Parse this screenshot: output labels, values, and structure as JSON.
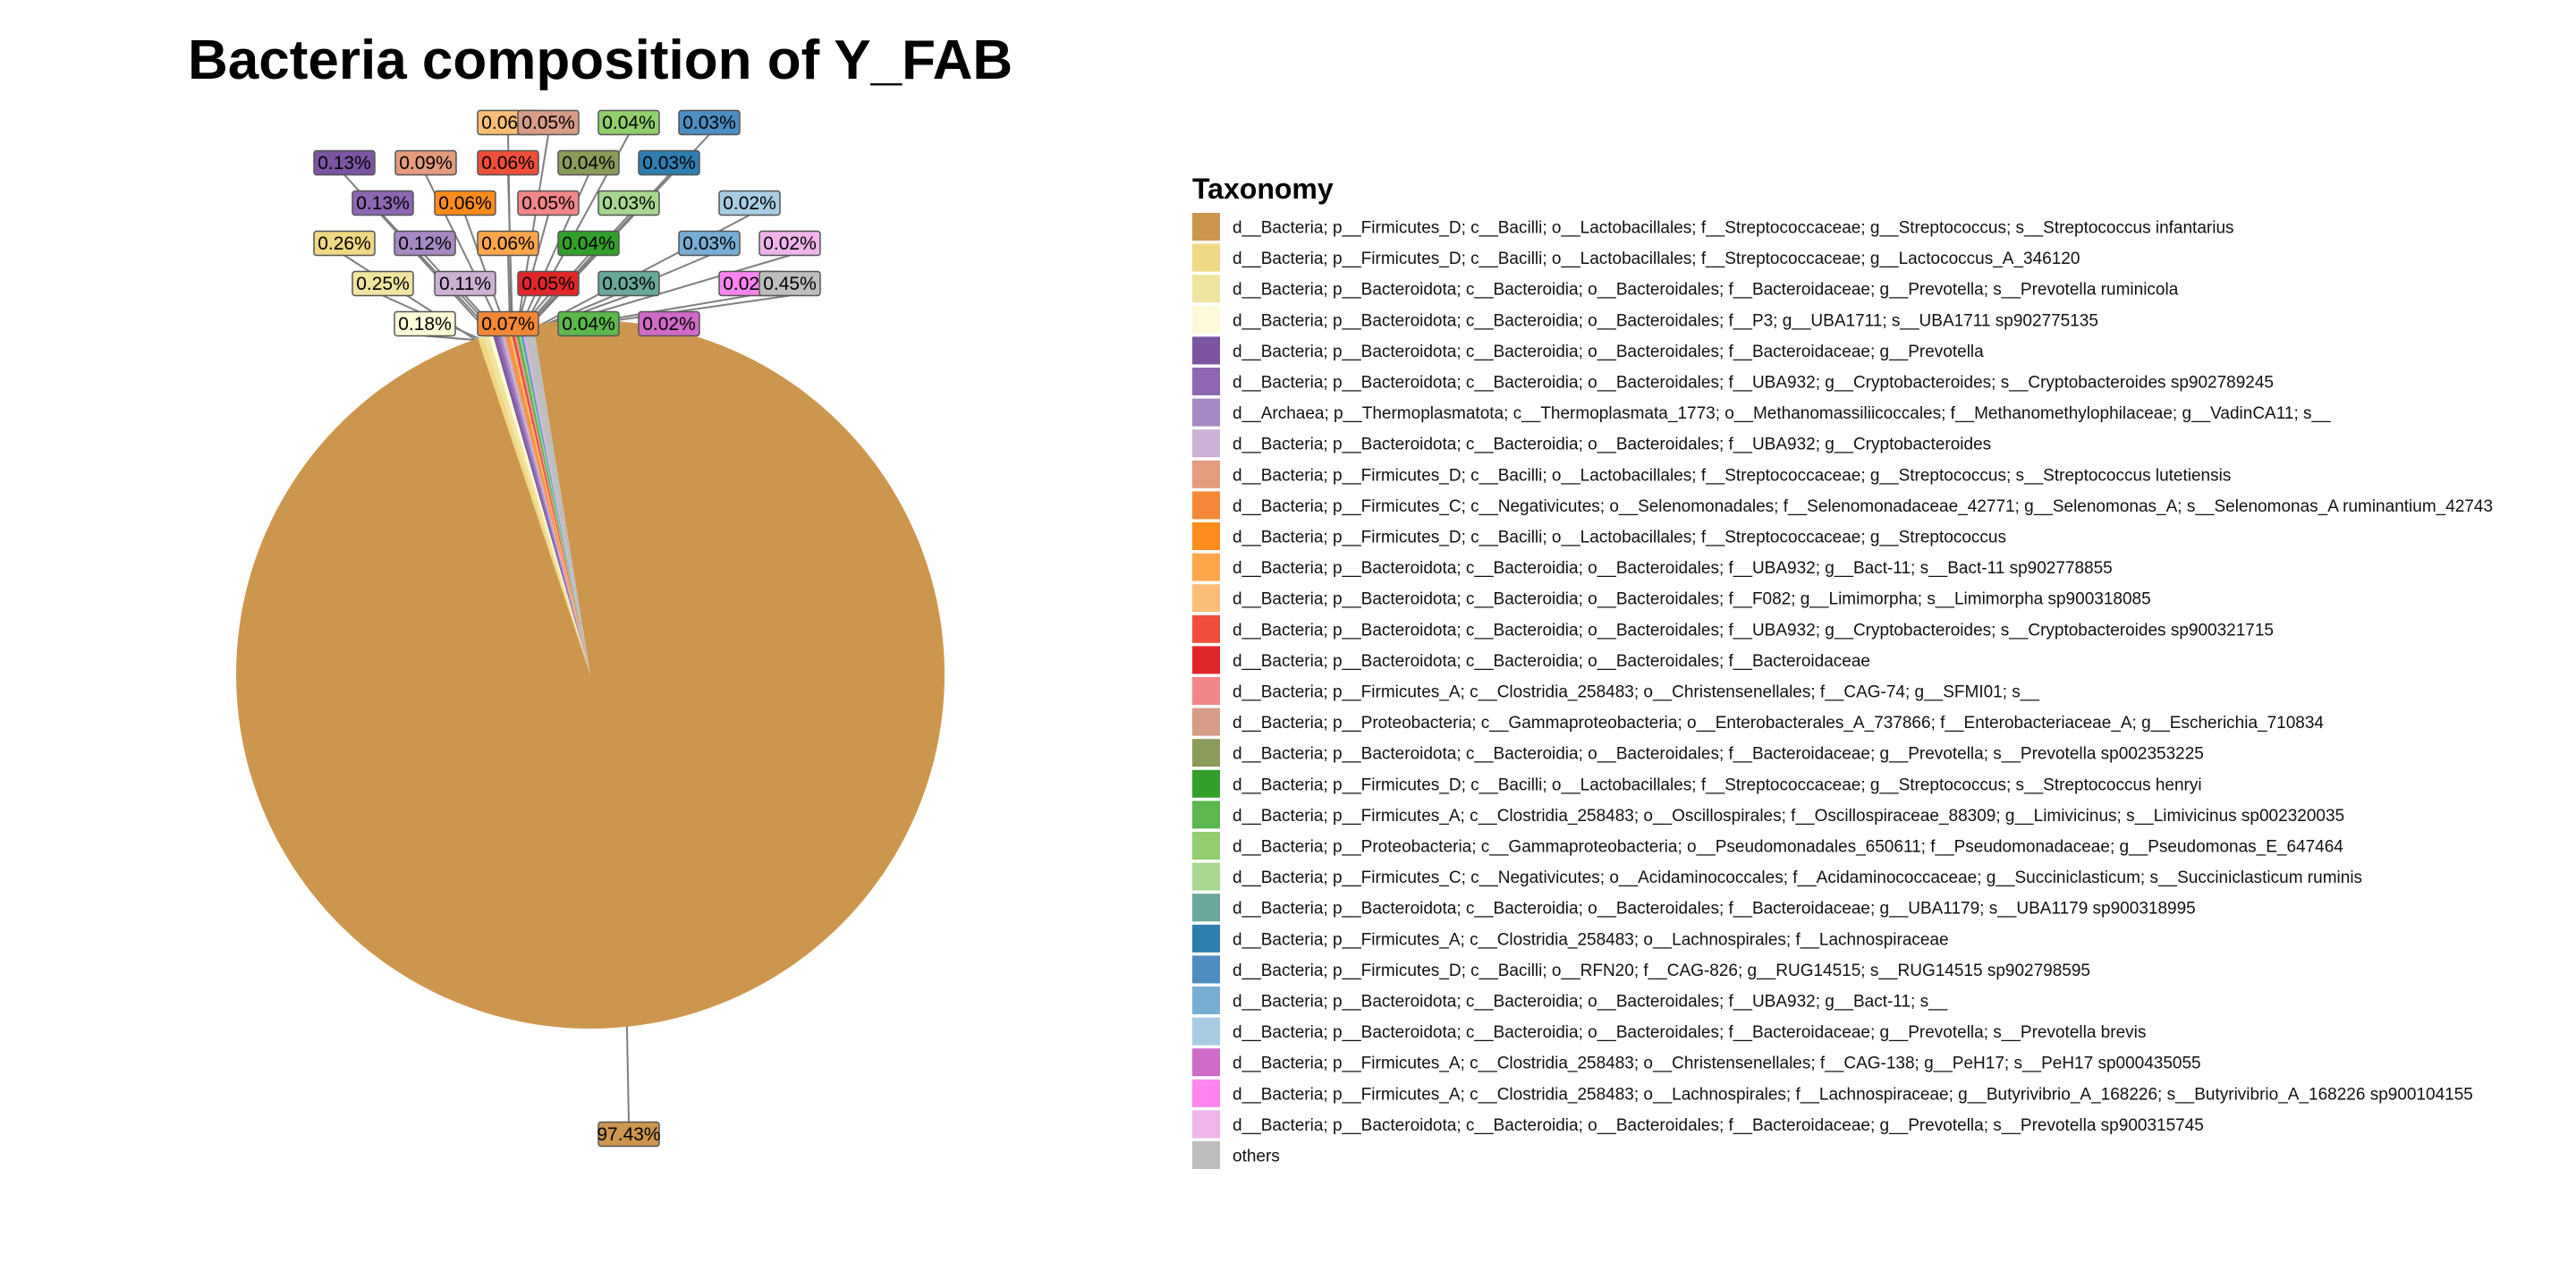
{
  "chart_data": {
    "type": "pie",
    "title": "Bacteria composition of Y_FAB",
    "legend_title": "Taxonomy",
    "legend_position": "right",
    "slices": [
      {
        "name": "d__Bacteria; p__Firmicutes_D; c__Bacilli; o__Lactobacillales; f__Streptococcaceae; g__Streptococcus; s__Streptococcus infantarius",
        "value": 97.43,
        "label": "97.43%",
        "color": "#CD964F"
      },
      {
        "name": "d__Bacteria; p__Firmicutes_D; c__Bacilli; o__Lactobacillales; f__Streptococcaceae; g__Lactococcus_A_346120",
        "value": 0.26,
        "label": "0.26%",
        "color": "#F0D884"
      },
      {
        "name": "d__Bacteria; p__Bacteroidota; c__Bacteroidia; o__Bacteroidales; f__Bacteroidaceae; g__Prevotella; s__Prevotella ruminicola",
        "value": 0.25,
        "label": "0.25%",
        "color": "#EFE5A1"
      },
      {
        "name": "d__Bacteria; p__Bacteroidota; c__Bacteroidia; o__Bacteroidales; f__P3; g__UBA1711; s__UBA1711 sp902775135",
        "value": 0.18,
        "label": "0.18%",
        "color": "#FEFCD8"
      },
      {
        "name": "d__Bacteria; p__Bacteroidota; c__Bacteroidia; o__Bacteroidales; f__Bacteroidaceae; g__Prevotella",
        "value": 0.13,
        "label": "0.13%",
        "color": "#7B55A1"
      },
      {
        "name": "d__Bacteria; p__Bacteroidota; c__Bacteroidia; o__Bacteroidales; f__UBA932; g__Cryptobacteroides; s__Cryptobacteroides sp902789245",
        "value": 0.13,
        "label": "0.13%",
        "color": "#8D67B1"
      },
      {
        "name": "d__Archaea; p__Thermoplasmatota; c__Thermoplasmata_1773; o__Methanomassiliicoccales; f__Methanomethylophilaceae; g__VadinCA11; s__",
        "value": 0.12,
        "label": "0.12%",
        "color": "#A689C3"
      },
      {
        "name": "d__Bacteria; p__Bacteroidota; c__Bacteroidia; o__Bacteroidales; f__UBA932; g__Cryptobacteroides",
        "value": 0.11,
        "label": "0.11%",
        "color": "#CDB1D5"
      },
      {
        "name": "d__Bacteria; p__Firmicutes_D; c__Bacilli; o__Lactobacillales; f__Streptococcaceae; g__Streptococcus; s__Streptococcus lutetiensis",
        "value": 0.09,
        "label": "0.09%",
        "color": "#E49B7E"
      },
      {
        "name": "d__Bacteria; p__Firmicutes_C; c__Negativicutes; o__Selenomonadales; f__Selenomonadaceae_42771; g__Selenomonas_A; s__Selenomonas_A ruminantium_42743",
        "value": 0.07,
        "label": "0.07%",
        "color": "#F48836"
      },
      {
        "name": "d__Bacteria; p__Firmicutes_D; c__Bacilli; o__Lactobacillales; f__Streptococcaceae; g__Streptococcus",
        "value": 0.06,
        "label": "0.06%",
        "color": "#FE8C1C"
      },
      {
        "name": "d__Bacteria; p__Bacteroidota; c__Bacteroidia; o__Bacteroidales; f__UBA932; g__Bact-11; s__Bact-11 sp902778855",
        "value": 0.06,
        "label": "0.06%",
        "color": "#FCA64C"
      },
      {
        "name": "d__Bacteria; p__Bacteroidota; c__Bacteroidia; o__Bacteroidales; f__F082; g__Limimorpha; s__Limimorpha sp900318085",
        "value": 0.06,
        "label": "0.06%",
        "color": "#FCBE77"
      },
      {
        "name": "d__Bacteria; p__Bacteroidota; c__Bacteroidia; o__Bacteroidales; f__UBA932; g__Cryptobacteroides; s__Cryptobacteroides sp900321715",
        "value": 0.06,
        "label": "0.06%",
        "color": "#EF4F3A"
      },
      {
        "name": "d__Bacteria; p__Bacteroidota; c__Bacteroidia; o__Bacteroidales; f__Bacteroidaceae",
        "value": 0.05,
        "label": "0.05%",
        "color": "#E1262A"
      },
      {
        "name": "d__Bacteria; p__Firmicutes_A; c__Clostridia_258483; o__Christensenellales; f__CAG-74; g__SFMI01; s__",
        "value": 0.05,
        "label": "0.05%",
        "color": "#F38688"
      },
      {
        "name": "d__Bacteria; p__Proteobacteria; c__Gammaproteobacteria; o__Enterobacterales_A_737866; f__Enterobacteriaceae_A; g__Escherichia_710834",
        "value": 0.05,
        "label": "0.05%",
        "color": "#D69C86"
      },
      {
        "name": "d__Bacteria; p__Bacteroidota; c__Bacteroidia; o__Bacteroidales; f__Bacteroidaceae; g__Prevotella; s__Prevotella sp002353225",
        "value": 0.04,
        "label": "0.04%",
        "color": "#8B9B5A"
      },
      {
        "name": "d__Bacteria; p__Firmicutes_D; c__Bacilli; o__Lactobacillales; f__Streptococcaceae; g__Streptococcus; s__Streptococcus henryi",
        "value": 0.04,
        "label": "0.04%",
        "color": "#33A02C"
      },
      {
        "name": "d__Bacteria; p__Firmicutes_A; c__Clostridia_258483; o__Oscillospirales; f__Oscillospiraceae_88309; g__Limivicinus; s__Limivicinus sp002320035",
        "value": 0.04,
        "label": "0.04%",
        "color": "#5CB74C"
      },
      {
        "name": "d__Bacteria; p__Proteobacteria; c__Gammaproteobacteria; o__Pseudomonadales_650611; f__Pseudomonadaceae; g__Pseudomonas_E_647464",
        "value": 0.04,
        "label": "0.04%",
        "color": "#91CE6E"
      },
      {
        "name": "d__Bacteria; p__Firmicutes_C; c__Negativicutes; o__Acidaminococcales; f__Acidaminococcaceae; g__Succiniclasticum; s__Succiniclasticum ruminis",
        "value": 0.03,
        "label": "0.03%",
        "color": "#A7D790"
      },
      {
        "name": "d__Bacteria; p__Bacteroidota; c__Bacteroidia; o__Bacteroidales; f__Bacteroidaceae; g__UBA1179; s__UBA1179 sp900318995",
        "value": 0.03,
        "label": "0.03%",
        "color": "#69A89A"
      },
      {
        "name": "d__Bacteria; p__Firmicutes_A; c__Clostridia_258483; o__Lachnospirales; f__Lachnospiraceae",
        "value": 0.03,
        "label": "0.03%",
        "color": "#2E7EB0"
      },
      {
        "name": "d__Bacteria; p__Firmicutes_D; c__Bacilli; o__RFN20; f__CAG-826; g__RUG14515; s__RUG14515 sp902798595",
        "value": 0.03,
        "label": "0.03%",
        "color": "#4D8DC1"
      },
      {
        "name": "d__Bacteria; p__Bacteroidota; c__Bacteroidia; o__Bacteroidales; f__UBA932; g__Bact-11; s__",
        "value": 0.03,
        "label": "0.03%",
        "color": "#78AED4"
      },
      {
        "name": "d__Bacteria; p__Bacteroidota; c__Bacteroidia; o__Bacteroidales; f__Bacteroidaceae; g__Prevotella; s__Prevotella brevis",
        "value": 0.02,
        "label": "0.02%",
        "color": "#A8CCE4"
      },
      {
        "name": "d__Bacteria; p__Firmicutes_A; c__Clostridia_258483; o__Christensenellales; f__CAG-138; g__PeH17; s__PeH17 sp000435055",
        "value": 0.02,
        "label": "0.02%",
        "color": "#CF6BC6"
      },
      {
        "name": "d__Bacteria; p__Firmicutes_A; c__Clostridia_258483; o__Lachnospirales; f__Lachnospiraceae; g__Butyrivibrio_A_168226; s__Butyrivibrio_A_168226 sp900104155",
        "value": 0.02,
        "label": "0.02%",
        "color": "#FE84F0"
      },
      {
        "name": "d__Bacteria; p__Bacteroidota; c__Bacteroidia; o__Bacteroidales; f__Bacteroidaceae; g__Prevotella; s__Prevotella sp900315745",
        "value": 0.02,
        "label": "0.02%",
        "color": "#EFB5EB"
      },
      {
        "name": "others",
        "value": 0.45,
        "label": "0.45%",
        "color": "#BEBEBE"
      }
    ]
  }
}
